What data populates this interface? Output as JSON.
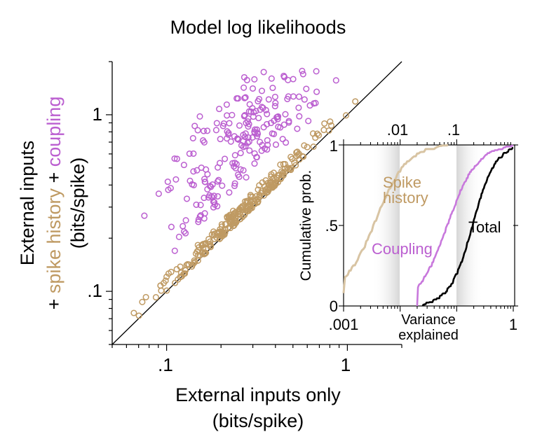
{
  "colors": {
    "external": "#bf9a63",
    "coupling": "#bb5fd0",
    "coupling_line": "#c878dc",
    "spike_line": "#d8c4a3",
    "total": "#000000",
    "axis": "#000000"
  },
  "chart_data": [
    {
      "type": "scatter",
      "title": "Model log likelihoods",
      "xlabel_line1": "External inputs only",
      "xlabel_line2": "(bits/spike)",
      "ylabel_line1": "External inputs",
      "ylabel_prefix": "+ ",
      "ylabel_spike": "spike history",
      "ylabel_plus": " + ",
      "ylabel_coupling": "coupling",
      "ylabel_line3": "(bits/spike)",
      "xscale": "log",
      "yscale": "log",
      "xlim": [
        0.05,
        2.0
      ],
      "ylim": [
        0.05,
        2.0
      ],
      "xticks": [
        {
          "v": 0.1,
          "label": ".1"
        },
        {
          "v": 1,
          "label": "1"
        }
      ],
      "yticks": [
        {
          "v": 0.1,
          "label": ".1"
        },
        {
          "v": 1,
          "label": "1"
        }
      ],
      "identity_line": true,
      "series": [
        {
          "name": "spike history",
          "color": "#bf9a63",
          "n": 260,
          "seed": 7,
          "offset_min": 0.0,
          "offset_max": 0.09,
          "xmin": 0.055,
          "xmax": 1.3
        },
        {
          "name": "coupling",
          "color": "#bb5fd0",
          "n": 230,
          "seed": 13,
          "offset_min": 0.05,
          "offset_max": 0.9,
          "xmin": 0.06,
          "xmax": 1.1
        }
      ]
    },
    {
      "type": "line",
      "inset": true,
      "xlabel_line1": "Variance",
      "xlabel_line2": "explained",
      "ylabel": "Cumulative prob.",
      "xscale": "log",
      "xlim": [
        0.001,
        1
      ],
      "ylim": [
        0,
        1
      ],
      "xticks_bottom": [
        {
          "v": 0.001,
          "label": ".001"
        },
        {
          "v": 1,
          "label": "1"
        }
      ],
      "xticks_top": [
        {
          "v": 0.01,
          "label": ".01"
        },
        {
          "v": 0.1,
          "label": ".1"
        }
      ],
      "yticks": [
        {
          "v": 0,
          "label": "0"
        },
        {
          "v": 0.5,
          "label": ".5"
        },
        {
          "v": 1,
          "label": "1"
        }
      ],
      "series": [
        {
          "name": "Spike history",
          "label_line1": "Spike",
          "label_line2": "history",
          "color": "#d8c4a3",
          "median": 0.0038,
          "spread": 0.27,
          "xstart": 0.001,
          "ystart": 0.08
        },
        {
          "name": "Coupling",
          "label": "Coupling",
          "color": "#c878dc",
          "median": 0.068,
          "spread": 0.26,
          "xstart": 0.02,
          "ystart": 0.0
        },
        {
          "name": "Total",
          "label": "Total",
          "color": "#000000",
          "median": 0.19,
          "spread": 0.2,
          "xstart": 0.025,
          "ystart": 0.0
        }
      ]
    }
  ]
}
